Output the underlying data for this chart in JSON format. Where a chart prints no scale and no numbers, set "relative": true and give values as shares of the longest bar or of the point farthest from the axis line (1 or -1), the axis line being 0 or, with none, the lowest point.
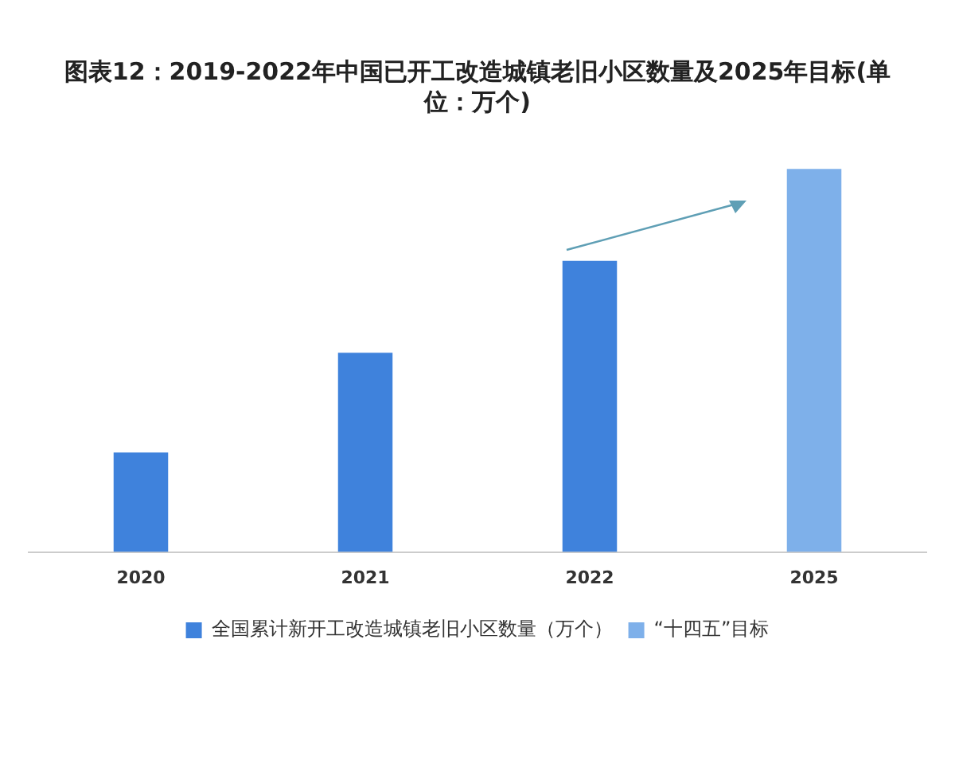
{
  "chart_data": {
    "type": "bar",
    "title": "图表12：2019-2022年中国已开工改造城镇老旧小区数量及2025年目标(单位：万个)",
    "relative": true,
    "categories": [
      "2020",
      "2021",
      "2022",
      "2025"
    ],
    "series": [
      {
        "name": "全国累计新开工改造城镇老旧小区数量（万个）",
        "color": "#3f82dc",
        "values": [
          0.26,
          0.52,
          0.76,
          null
        ]
      },
      {
        "name": "“十四五”目标",
        "color": "#7eb0ea",
        "values": [
          null,
          null,
          null,
          1
        ]
      }
    ],
    "legend": "bottom",
    "grid": false
  }
}
